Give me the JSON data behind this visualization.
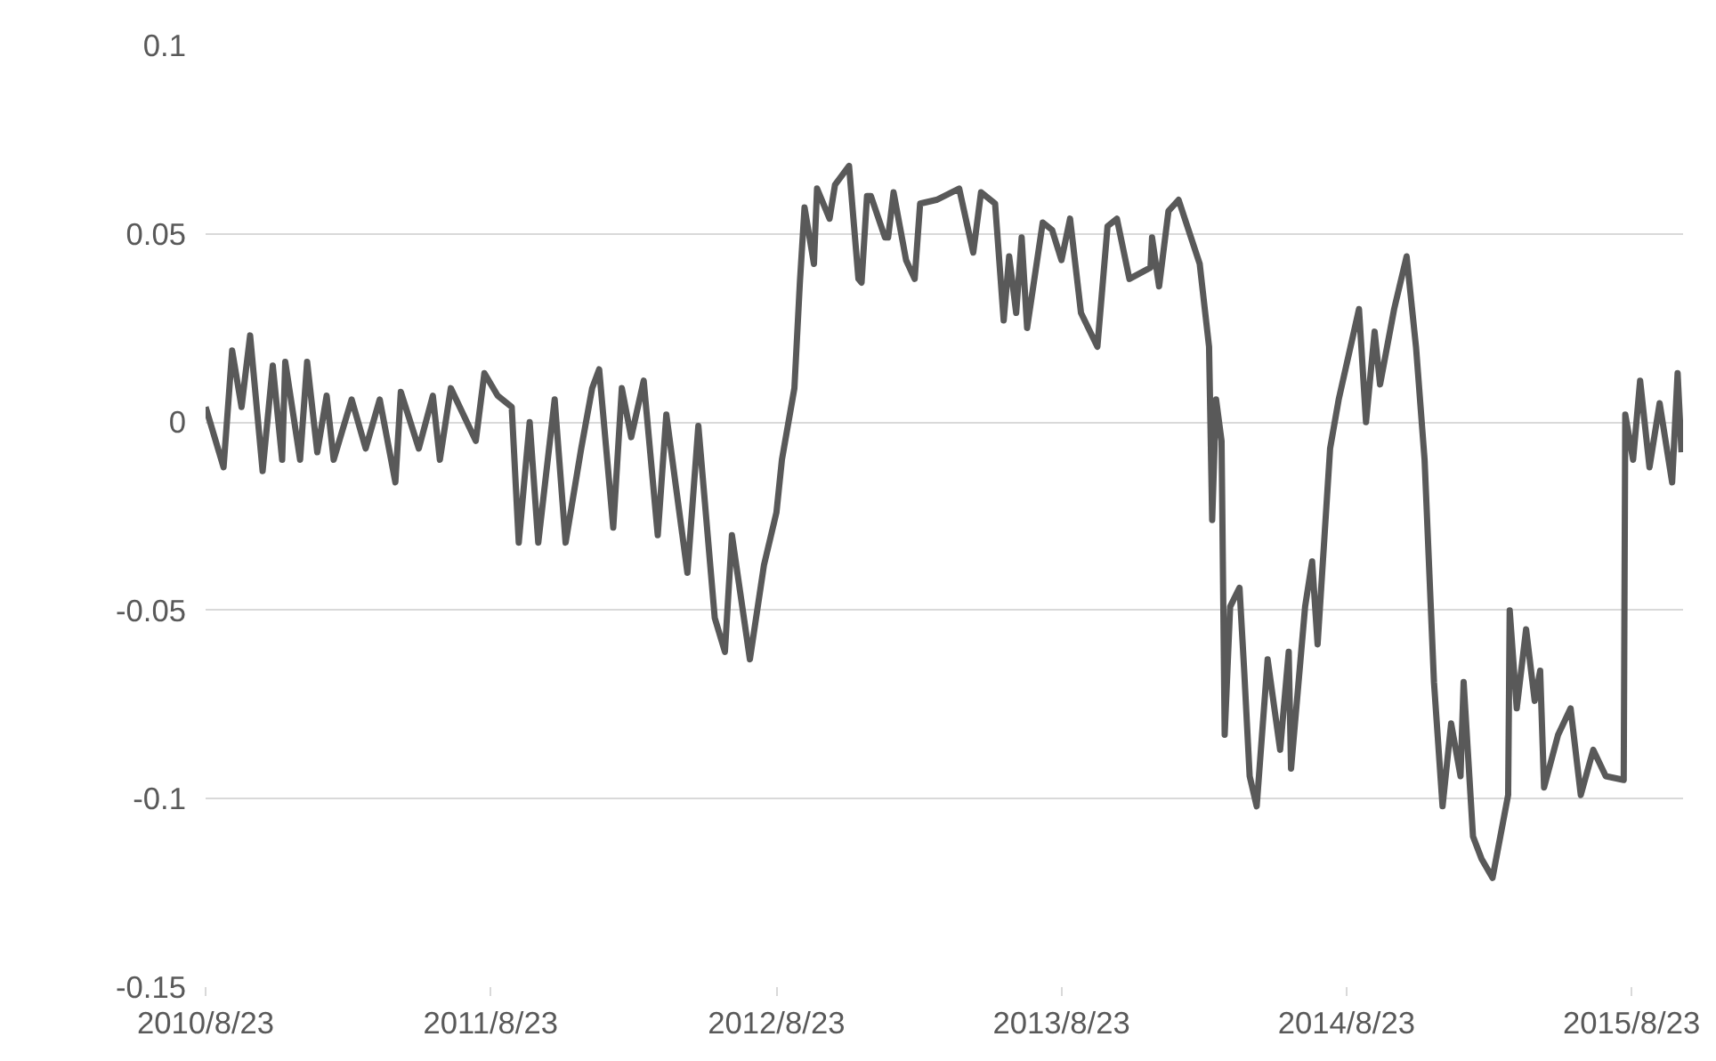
{
  "chart_data": {
    "type": "line",
    "xlim": [
      "2010-08-23",
      "2015-10-28"
    ],
    "ylim": [
      -0.15,
      0.1
    ],
    "xticks": [
      {
        "value": "2010-08-23",
        "label": "2010/8/23"
      },
      {
        "value": "2011-08-23",
        "label": "2011/8/23"
      },
      {
        "value": "2012-08-23",
        "label": "2012/8/23"
      },
      {
        "value": "2013-08-23",
        "label": "2013/8/23"
      },
      {
        "value": "2014-08-23",
        "label": "2014/8/23"
      },
      {
        "value": "2015-08-23",
        "label": "2015/8/23"
      }
    ],
    "yticks": [
      -0.15,
      -0.1,
      -0.05,
      0,
      0.05,
      0.1
    ],
    "grid": "y",
    "line_style": "solid",
    "series": [
      {
        "color": "#595959",
        "x": [
          "2010-08-23",
          "2010-09-15",
          "2010-09-26",
          "2010-10-08",
          "2010-10-19",
          "2010-11-04",
          "2010-11-17",
          "2010-11-29",
          "2010-12-03",
          "2010-12-22",
          "2010-12-31",
          "2011-01-13",
          "2011-01-25",
          "2011-02-03",
          "2011-02-26",
          "2011-03-16",
          "2011-04-03",
          "2011-04-23",
          "2011-04-30",
          "2011-05-23",
          "2011-06-10",
          "2011-06-19",
          "2011-07-03",
          "2011-08-04",
          "2011-08-15",
          "2011-09-01",
          "2011-09-19",
          "2011-09-28",
          "2011-10-12",
          "2011-10-23",
          "2011-11-13",
          "2011-11-27",
          "2011-12-17",
          "2011-12-31",
          "2012-01-09",
          "2012-01-27",
          "2012-02-07",
          "2012-02-19",
          "2012-03-06",
          "2012-03-24",
          "2012-04-04",
          "2012-05-01",
          "2012-05-15",
          "2012-06-05",
          "2012-06-18",
          "2012-06-27",
          "2012-07-20",
          "2012-08-07",
          "2012-08-23",
          "2012-08-30",
          "2012-09-15",
          "2012-09-22",
          "2012-09-28",
          "2012-10-10",
          "2012-10-14",
          "2012-10-30",
          "2012-11-06",
          "2012-11-24",
          "2012-12-06",
          "2012-12-10",
          "2012-12-17",
          "2012-12-22",
          "2013-01-09",
          "2013-01-13",
          "2013-01-20",
          "2013-02-05",
          "2013-02-16",
          "2013-02-23",
          "2013-03-16",
          "2013-04-14",
          "2013-05-02",
          "2013-05-12",
          "2013-05-30",
          "2013-06-10",
          "2013-06-17",
          "2013-06-26",
          "2013-07-03",
          "2013-07-10",
          "2013-07-30",
          "2013-08-11",
          "2013-08-23",
          "2013-09-03",
          "2013-09-17",
          "2013-10-08",
          "2013-10-21",
          "2013-11-02",
          "2013-11-18",
          "2013-12-15",
          "2013-12-17",
          "2013-12-26",
          "2014-01-07",
          "2014-01-20",
          "2014-02-16",
          "2014-02-28",
          "2014-03-04",
          "2014-03-09",
          "2014-03-16",
          "2014-03-20",
          "2014-03-27",
          "2014-04-08",
          "2014-04-14",
          "2014-04-21",
          "2014-04-30",
          "2014-05-14",
          "2014-05-30",
          "2014-06-10",
          "2014-06-13",
          "2014-07-01",
          "2014-07-10",
          "2014-07-17",
          "2014-08-02",
          "2014-08-13",
          "2014-09-08",
          "2014-09-17",
          "2014-09-28",
          "2014-10-05",
          "2014-10-23",
          "2014-11-08",
          "2014-11-20",
          "2014-12-01",
          "2014-12-13",
          "2014-12-24",
          "2015-01-04",
          "2015-01-16",
          "2015-01-20",
          "2015-02-01",
          "2015-02-12",
          "2015-02-26",
          "2015-03-18",
          "2015-03-20",
          "2015-03-29",
          "2015-04-10",
          "2015-04-21",
          "2015-04-28",
          "2015-05-03",
          "2015-05-21",
          "2015-06-06",
          "2015-06-19",
          "2015-07-05",
          "2015-07-21",
          "2015-08-13",
          "2015-08-15",
          "2015-08-25",
          "2015-09-03",
          "2015-09-15",
          "2015-09-28",
          "2015-10-14",
          "2015-10-21",
          "2015-10-26"
        ],
        "values": [
          0.004,
          -0.012,
          0.019,
          0.004,
          0.023,
          -0.013,
          0.015,
          -0.01,
          0.016,
          -0.01,
          0.016,
          -0.008,
          0.007,
          -0.01,
          0.006,
          -0.007,
          0.006,
          -0.016,
          0.008,
          -0.007,
          0.007,
          -0.01,
          0.009,
          -0.005,
          0.013,
          0.007,
          0.004,
          -0.032,
          0.0,
          -0.032,
          0.006,
          -0.032,
          -0.007,
          0.009,
          0.014,
          -0.028,
          0.009,
          -0.004,
          0.011,
          -0.03,
          0.002,
          -0.04,
          -0.001,
          -0.052,
          -0.061,
          -0.03,
          -0.063,
          -0.038,
          -0.024,
          -0.01,
          0.009,
          0.037,
          0.057,
          0.042,
          0.062,
          0.054,
          0.063,
          0.068,
          0.038,
          0.037,
          0.06,
          0.06,
          0.049,
          0.049,
          0.061,
          0.043,
          0.038,
          0.058,
          0.059,
          0.062,
          0.045,
          0.061,
          0.058,
          0.027,
          0.044,
          0.029,
          0.049,
          0.025,
          0.053,
          0.051,
          0.043,
          0.054,
          0.029,
          0.02,
          0.052,
          0.054,
          0.038,
          0.041,
          0.049,
          0.036,
          0.056,
          0.059,
          0.042,
          0.02,
          -0.026,
          0.006,
          -0.005,
          -0.083,
          -0.049,
          -0.044,
          -0.066,
          -0.094,
          -0.102,
          -0.063,
          -0.087,
          -0.061,
          -0.092,
          -0.049,
          -0.037,
          -0.059,
          -0.007,
          0.006,
          0.03,
          0.0,
          0.024,
          0.01,
          0.03,
          0.044,
          0.02,
          -0.01,
          -0.069,
          -0.102,
          -0.08,
          -0.094,
          -0.069,
          -0.11,
          -0.116,
          -0.121,
          -0.099,
          -0.05,
          -0.076,
          -0.055,
          -0.074,
          -0.066,
          -0.097,
          -0.083,
          -0.076,
          -0.099,
          -0.087,
          -0.094,
          -0.095,
          0.002,
          -0.01,
          0.011,
          -0.012,
          0.005,
          -0.016,
          0.013,
          -0.008
        ]
      }
    ]
  }
}
